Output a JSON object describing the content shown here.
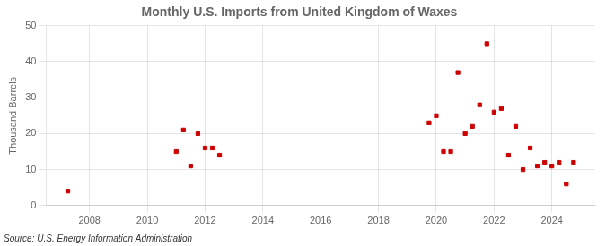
{
  "chart_data": {
    "type": "scatter",
    "title": "Monthly U.S. Imports from United Kingdom of Waxes",
    "ylabel": "Thousand Barrels",
    "annotation": "Source: U.S. Energy Information Administration",
    "color": "#cc0000",
    "marker": "square",
    "grid": true,
    "xlim": [
      2006.5,
      2025.5
    ],
    "xticks": [
      2008,
      2010,
      2012,
      2014,
      2016,
      2018,
      2020,
      2022,
      2024
    ],
    "ylim": [
      0,
      50
    ],
    "yticks": [
      0,
      10,
      20,
      30,
      40,
      50
    ],
    "x": [
      2007.25,
      2011.0,
      2011.25,
      2011.5,
      2011.75,
      2012.0,
      2012.25,
      2012.5,
      2019.75,
      2020.0,
      2020.25,
      2020.5,
      2020.75,
      2021.0,
      2021.25,
      2021.5,
      2021.75,
      2022.0,
      2022.25,
      2022.5,
      2022.75,
      2023.0,
      2023.25,
      2023.5,
      2023.75,
      2024.0,
      2024.25,
      2024.5,
      2024.75
    ],
    "values": [
      4,
      15,
      21,
      11,
      20,
      16,
      16,
      14,
      23,
      25,
      15,
      15,
      37,
      20,
      22,
      28,
      45,
      26,
      27,
      14,
      22,
      10,
      16,
      11,
      12,
      11,
      12,
      6,
      12
    ]
  }
}
